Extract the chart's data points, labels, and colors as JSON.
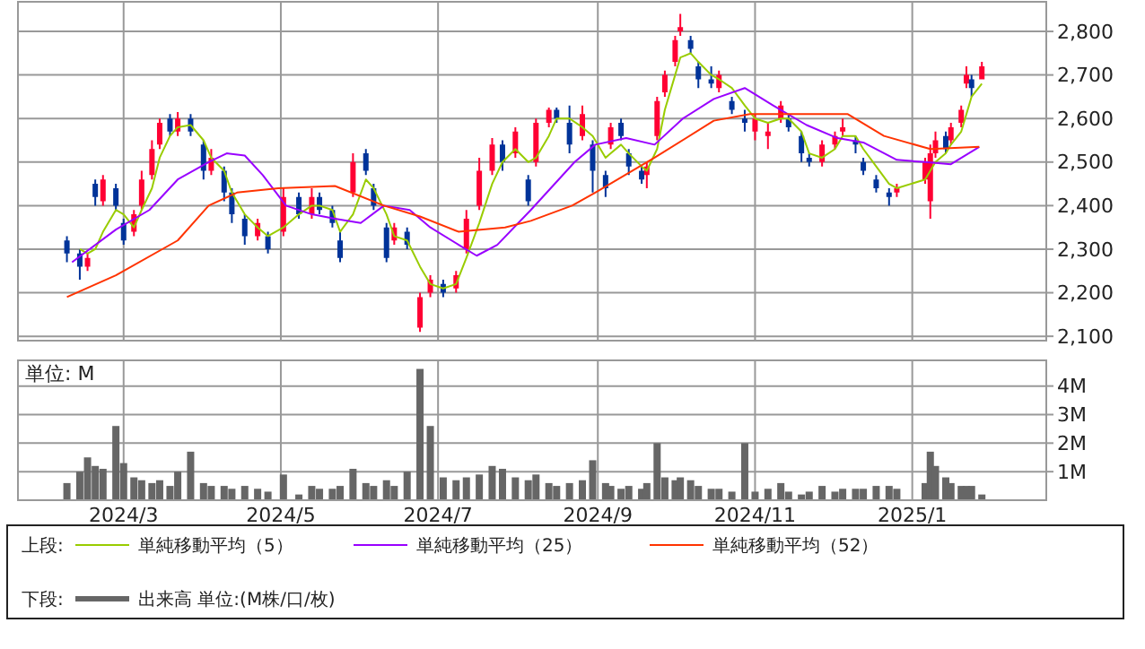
{
  "chart_data": [
    {
      "type": "candlestick",
      "tick_labels": "y",
      "grid": true,
      "legend": "bottom",
      "annotations": [
        "上段:"
      ],
      "xlim": [
        "2024-01-20",
        "2025-02-22"
      ],
      "xticks": [
        {
          "value": "2024-03-01",
          "label": null
        },
        {
          "value": "2024-05-01",
          "label": null
        },
        {
          "value": "2024-07-01",
          "label": null
        },
        {
          "value": "2024-09-01",
          "label": null
        },
        {
          "value": "2024-11-01",
          "label": null
        },
        {
          "value": "2025-01-01",
          "label": null
        }
      ],
      "ylim": [
        2090,
        2868
      ],
      "yticks": [
        {
          "value": 2100,
          "label": "2,100"
        },
        {
          "value": 2200,
          "label": "2,200"
        },
        {
          "value": 2300,
          "label": "2,300"
        },
        {
          "value": 2400,
          "label": "2,400"
        },
        {
          "value": 2500,
          "label": "2,500"
        },
        {
          "value": 2600,
          "label": "2,600"
        },
        {
          "value": 2700,
          "label": "2,700"
        },
        {
          "value": 2800,
          "label": "2,800"
        }
      ],
      "x": [
        "2024-02-08",
        "2024-02-13",
        "2024-02-16",
        "2024-02-19",
        "2024-02-22",
        "2024-02-27",
        "2024-03-01",
        "2024-03-05",
        "2024-03-08",
        "2024-03-12",
        "2024-03-15",
        "2024-03-19",
        "2024-03-22",
        "2024-03-27",
        "2024-04-01",
        "2024-04-04",
        "2024-04-09",
        "2024-04-12",
        "2024-04-17",
        "2024-04-22",
        "2024-04-26",
        "2024-05-02",
        "2024-05-08",
        "2024-05-13",
        "2024-05-16",
        "2024-05-21",
        "2024-05-24",
        "2024-05-29",
        "2024-06-03",
        "2024-06-06",
        "2024-06-11",
        "2024-06-14",
        "2024-06-19",
        "2024-06-24",
        "2024-06-28",
        "2024-07-03",
        "2024-07-08",
        "2024-07-12",
        "2024-07-17",
        "2024-07-22",
        "2024-07-26",
        "2024-07-31",
        "2024-08-05",
        "2024-08-08",
        "2024-08-13",
        "2024-08-16",
        "2024-08-21",
        "2024-08-26",
        "2024-08-30",
        "2024-09-04",
        "2024-09-06",
        "2024-09-10",
        "2024-09-13",
        "2024-09-18",
        "2024-09-20",
        "2024-09-24",
        "2024-09-27",
        "2024-10-01",
        "2024-10-03",
        "2024-10-07",
        "2024-10-10",
        "2024-10-15",
        "2024-10-18",
        "2024-10-23",
        "2024-10-28",
        "2024-11-01",
        "2024-11-06",
        "2024-11-11",
        "2024-11-14",
        "2024-11-19",
        "2024-11-22",
        "2024-11-27",
        "2024-12-02",
        "2024-12-05",
        "2024-12-10",
        "2024-12-13",
        "2024-12-18",
        "2024-12-23",
        "2024-12-26",
        "2025-01-06",
        "2025-01-08",
        "2025-01-10",
        "2025-01-14",
        "2025-01-16",
        "2025-01-20",
        "2025-01-22",
        "2025-01-24",
        "2025-01-28"
      ],
      "ohlc": [
        [
          2320,
          2330,
          2270,
          2290
        ],
        [
          2290,
          2300,
          2230,
          2260
        ],
        [
          2260,
          2290,
          2250,
          2280
        ],
        [
          2450,
          2460,
          2400,
          2420
        ],
        [
          2410,
          2470,
          2400,
          2460
        ],
        [
          2440,
          2450,
          2390,
          2400
        ],
        [
          2360,
          2370,
          2310,
          2320
        ],
        [
          2340,
          2390,
          2330,
          2380
        ],
        [
          2400,
          2480,
          2390,
          2460
        ],
        [
          2470,
          2550,
          2460,
          2530
        ],
        [
          2540,
          2600,
          2530,
          2590
        ],
        [
          2600,
          2610,
          2560,
          2570
        ],
        [
          2570,
          2615,
          2560,
          2600
        ],
        [
          2600,
          2610,
          2560,
          2570
        ],
        [
          2540,
          2550,
          2460,
          2480
        ],
        [
          2480,
          2530,
          2470,
          2510
        ],
        [
          2480,
          2490,
          2410,
          2430
        ],
        [
          2430,
          2440,
          2360,
          2380
        ],
        [
          2370,
          2380,
          2310,
          2330
        ],
        [
          2330,
          2370,
          2320,
          2360
        ],
        [
          2330,
          2340,
          2290,
          2300
        ],
        [
          2340,
          2440,
          2330,
          2420
        ],
        [
          2420,
          2430,
          2370,
          2380
        ],
        [
          2380,
          2440,
          2370,
          2420
        ],
        [
          2420,
          2430,
          2380,
          2390
        ],
        [
          2390,
          2400,
          2350,
          2360
        ],
        [
          2320,
          2340,
          2270,
          2280
        ],
        [
          2430,
          2520,
          2420,
          2500
        ],
        [
          2520,
          2530,
          2470,
          2480
        ],
        [
          2440,
          2450,
          2390,
          2400
        ],
        [
          2350,
          2360,
          2270,
          2280
        ],
        [
          2320,
          2360,
          2310,
          2350
        ],
        [
          2340,
          2350,
          2300,
          2310
        ],
        [
          2120,
          2200,
          2110,
          2190
        ],
        [
          2200,
          2240,
          2190,
          2230
        ],
        [
          2220,
          2230,
          2190,
          2200
        ],
        [
          2210,
          2250,
          2200,
          2240
        ],
        [
          2300,
          2390,
          2290,
          2370
        ],
        [
          2400,
          2510,
          2390,
          2480
        ],
        [
          2480,
          2555,
          2470,
          2540
        ],
        [
          2540,
          2550,
          2480,
          2500
        ],
        [
          2520,
          2580,
          2510,
          2570
        ],
        [
          2460,
          2470,
          2400,
          2410
        ],
        [
          2500,
          2600,
          2490,
          2590
        ],
        [
          2590,
          2625,
          2580,
          2620
        ],
        [
          2620,
          2625,
          2590,
          2600
        ],
        [
          2590,
          2630,
          2520,
          2540
        ],
        [
          2560,
          2630,
          2550,
          2610
        ],
        [
          2540,
          2550,
          2430,
          2480
        ],
        [
          2470,
          2480,
          2420,
          2440
        ],
        [
          2540,
          2590,
          2530,
          2580
        ],
        [
          2590,
          2600,
          2550,
          2560
        ],
        [
          2520,
          2530,
          2470,
          2490
        ],
        [
          2480,
          2490,
          2450,
          2460
        ],
        [
          2470,
          2500,
          2440,
          2490
        ],
        [
          2560,
          2650,
          2550,
          2640
        ],
        [
          2660,
          2710,
          2650,
          2700
        ],
        [
          2730,
          2790,
          2720,
          2780
        ],
        [
          2800,
          2840,
          2790,
          2810
        ],
        [
          2780,
          2790,
          2750,
          2760
        ],
        [
          2720,
          2730,
          2670,
          2690
        ],
        [
          2690,
          2720,
          2670,
          2680
        ],
        [
          2670,
          2710,
          2660,
          2700
        ],
        [
          2640,
          2650,
          2610,
          2620
        ],
        [
          2600,
          2620,
          2570,
          2590
        ],
        [
          2570,
          2610,
          2550,
          2600
        ],
        [
          2560,
          2590,
          2530,
          2570
        ],
        [
          2600,
          2640,
          2590,
          2630
        ],
        [
          2600,
          2610,
          2570,
          2580
        ],
        [
          2560,
          2570,
          2500,
          2520
        ],
        [
          2510,
          2520,
          2490,
          2500
        ],
        [
          2500,
          2550,
          2490,
          2540
        ],
        [
          2540,
          2570,
          2530,
          2560
        ],
        [
          2570,
          2600,
          2560,
          2580
        ],
        [
          2550,
          2560,
          2520,
          2540
        ],
        [
          2500,
          2510,
          2470,
          2480
        ],
        [
          2460,
          2470,
          2430,
          2440
        ],
        [
          2430,
          2440,
          2400,
          2420
        ],
        [
          2430,
          2450,
          2420,
          2440
        ],
        [
          2460,
          2510,
          2450,
          2500
        ],
        [
          2410,
          2540,
          2370,
          2520
        ],
        [
          2520,
          2570,
          2510,
          2550
        ],
        [
          2560,
          2570,
          2520,
          2530
        ],
        [
          2550,
          2590,
          2540,
          2580
        ],
        [
          2590,
          2630,
          2580,
          2620
        ],
        [
          2680,
          2720,
          2670,
          2700
        ],
        [
          2690,
          2700,
          2650,
          2670
        ],
        [
          2690,
          2730,
          2690,
          2720
        ]
      ],
      "colors": [
        "#003399",
        "#003399",
        "#ff0033",
        "#003399",
        "#ff0033",
        "#003399",
        "#003399",
        "#ff0033",
        "#ff0033",
        "#ff0033",
        "#ff0033",
        "#003399",
        "#ff0033",
        "#003399",
        "#003399",
        "#ff0033",
        "#003399",
        "#003399",
        "#003399",
        "#ff0033",
        "#003399",
        "#ff0033",
        "#003399",
        "#ff0033",
        "#003399",
        "#003399",
        "#003399",
        "#ff0033",
        "#003399",
        "#003399",
        "#003399",
        "#ff0033",
        "#003399",
        "#ff0033",
        "#ff0033",
        "#003399",
        "#ff0033",
        "#ff0033",
        "#ff0033",
        "#ff0033",
        "#003399",
        "#ff0033",
        "#003399",
        "#ff0033",
        "#ff0033",
        "#003399",
        "#003399",
        "#ff0033",
        "#003399",
        "#003399",
        "#ff0033",
        "#003399",
        "#003399",
        "#003399",
        "#ff0033",
        "#ff0033",
        "#ff0033",
        "#ff0033",
        "#ff0033",
        "#003399",
        "#003399",
        "#003399",
        "#ff0033",
        "#003399",
        "#003399",
        "#ff0033",
        "#ff0033",
        "#ff0033",
        "#003399",
        "#003399",
        "#003399",
        "#ff0033",
        "#ff0033",
        "#ff0033",
        "#003399",
        "#003399",
        "#003399",
        "#003399",
        "#ff0033",
        "#ff0033",
        "#ff0033",
        "#ff0033",
        "#003399",
        "#ff0033",
        "#ff0033",
        "#ff0033",
        "#003399",
        "#ff0033"
      ],
      "series": [
        {
          "type": "line",
          "name": "単純移動平均（5）",
          "color": "#99cc00",
          "x": [
            "2024-02-13",
            "2024-02-16",
            "2024-02-19",
            "2024-02-22",
            "2024-02-27",
            "2024-03-01",
            "2024-03-05",
            "2024-03-08",
            "2024-03-12",
            "2024-03-15",
            "2024-03-19",
            "2024-03-22",
            "2024-03-27",
            "2024-04-01",
            "2024-04-04",
            "2024-04-09",
            "2024-04-12",
            "2024-04-17",
            "2024-04-22",
            "2024-04-26",
            "2024-05-02",
            "2024-05-08",
            "2024-05-13",
            "2024-05-16",
            "2024-05-21",
            "2024-05-24",
            "2024-05-29",
            "2024-06-03",
            "2024-06-06",
            "2024-06-11",
            "2024-06-14",
            "2024-06-19",
            "2024-06-24",
            "2024-06-28",
            "2024-07-03",
            "2024-07-08",
            "2024-07-12",
            "2024-07-17",
            "2024-07-22",
            "2024-07-26",
            "2024-07-31",
            "2024-08-05",
            "2024-08-08",
            "2024-08-13",
            "2024-08-16",
            "2024-08-21",
            "2024-08-26",
            "2024-08-30",
            "2024-09-04",
            "2024-09-06",
            "2024-09-10",
            "2024-09-13",
            "2024-09-18",
            "2024-09-20",
            "2024-09-24",
            "2024-09-27",
            "2024-10-01",
            "2024-10-03",
            "2024-10-07",
            "2024-10-10",
            "2024-10-15",
            "2024-10-18",
            "2024-10-23",
            "2024-10-28",
            "2024-11-01",
            "2024-11-06",
            "2024-11-11",
            "2024-11-14",
            "2024-11-19",
            "2024-11-22",
            "2024-11-27",
            "2024-12-02",
            "2024-12-05",
            "2024-12-10",
            "2024-12-13",
            "2024-12-18",
            "2024-12-23",
            "2024-12-26",
            "2025-01-06",
            "2025-01-08",
            "2025-01-10",
            "2025-01-14",
            "2025-01-16",
            "2025-01-20",
            "2025-01-22",
            "2025-01-24",
            "2025-01-28"
          ],
          "values": [
            2300,
            2290,
            2300,
            2340,
            2390,
            2380,
            2350,
            2390,
            2440,
            2510,
            2560,
            2580,
            2585,
            2550,
            2510,
            2480,
            2430,
            2380,
            2350,
            2330,
            2350,
            2380,
            2400,
            2400,
            2390,
            2340,
            2380,
            2460,
            2440,
            2380,
            2330,
            2320,
            2260,
            2220,
            2210,
            2220,
            2280,
            2360,
            2450,
            2500,
            2530,
            2500,
            2510,
            2560,
            2600,
            2600,
            2580,
            2560,
            2510,
            2520,
            2540,
            2520,
            2490,
            2480,
            2530,
            2620,
            2700,
            2740,
            2750,
            2730,
            2700,
            2690,
            2670,
            2630,
            2600,
            2590,
            2600,
            2600,
            2570,
            2520,
            2510,
            2530,
            2560,
            2560,
            2530,
            2490,
            2450,
            2440,
            2460,
            2480,
            2500,
            2520,
            2540,
            2570,
            2610,
            2650,
            2680
          ]
        },
        {
          "type": "line",
          "name": "単純移動平均（25）",
          "color": "#9900ff",
          "x": [
            "2024-02-10",
            "2024-02-27",
            "2024-03-11",
            "2024-03-22",
            "2024-04-03",
            "2024-04-10",
            "2024-04-17",
            "2024-04-24",
            "2024-05-03",
            "2024-05-13",
            "2024-05-22",
            "2024-06-01",
            "2024-06-10",
            "2024-06-20",
            "2024-06-28",
            "2024-07-09",
            "2024-07-16",
            "2024-07-24",
            "2024-08-06",
            "2024-08-23",
            "2024-08-31",
            "2024-09-12",
            "2024-09-23",
            "2024-10-04",
            "2024-10-16",
            "2024-10-28",
            "2024-11-08",
            "2024-11-21",
            "2024-12-03",
            "2024-12-13",
            "2024-12-26",
            "2025-01-06",
            "2025-01-16",
            "2025-01-27"
          ],
          "values": [
            2270,
            2345,
            2390,
            2460,
            2500,
            2520,
            2515,
            2470,
            2400,
            2380,
            2370,
            2360,
            2400,
            2390,
            2350,
            2310,
            2285,
            2310,
            2390,
            2500,
            2540,
            2555,
            2540,
            2600,
            2645,
            2670,
            2630,
            2585,
            2555,
            2545,
            2505,
            2500,
            2495,
            2535
          ]
        },
        {
          "type": "line",
          "name": "単純移動平均（52）",
          "color": "#ff3300",
          "x": [
            "2024-02-08",
            "2024-02-27",
            "2024-03-22",
            "2024-04-03",
            "2024-04-14",
            "2024-04-30",
            "2024-05-22",
            "2024-06-10",
            "2024-06-24",
            "2024-07-09",
            "2024-07-27",
            "2024-08-06",
            "2024-08-22",
            "2024-08-31",
            "2024-09-23",
            "2024-10-16",
            "2024-10-30",
            "2024-11-21",
            "2024-12-07",
            "2024-12-21",
            "2025-01-08",
            "2025-01-27"
          ],
          "values": [
            2190,
            2240,
            2320,
            2400,
            2430,
            2440,
            2445,
            2400,
            2375,
            2340,
            2350,
            2365,
            2400,
            2430,
            2510,
            2595,
            2610,
            2610,
            2610,
            2560,
            2530,
            2535
          ]
        }
      ]
    },
    {
      "type": "bar",
      "grid": true,
      "legend": "bottom",
      "annotations": [
        "単位: M",
        "下段:"
      ],
      "xlim": [
        "2024-01-20",
        "2025-02-22"
      ],
      "xticks": [
        {
          "value": "2024-03-01",
          "label": "2024/3"
        },
        {
          "value": "2024-05-01",
          "label": "2024/5"
        },
        {
          "value": "2024-07-01",
          "label": "2024/7"
        },
        {
          "value": "2024-09-01",
          "label": "2024/9"
        },
        {
          "value": "2024-11-01",
          "label": "2024/11"
        },
        {
          "value": "2025-01-01",
          "label": "2025/1"
        }
      ],
      "ylim": [
        0,
        4.9
      ],
      "yticks": [
        {
          "value": 1,
          "label": "1M"
        },
        {
          "value": 2,
          "label": "2M"
        },
        {
          "value": 3,
          "label": "3M"
        },
        {
          "value": 4,
          "label": "4M"
        }
      ],
      "x": [
        "2024-02-08",
        "2024-02-13",
        "2024-02-16",
        "2024-02-19",
        "2024-02-22",
        "2024-02-27",
        "2024-03-01",
        "2024-03-05",
        "2024-03-08",
        "2024-03-12",
        "2024-03-15",
        "2024-03-19",
        "2024-03-22",
        "2024-03-27",
        "2024-04-01",
        "2024-04-04",
        "2024-04-09",
        "2024-04-12",
        "2024-04-17",
        "2024-04-22",
        "2024-04-26",
        "2024-05-02",
        "2024-05-08",
        "2024-05-13",
        "2024-05-16",
        "2024-05-21",
        "2024-05-24",
        "2024-05-29",
        "2024-06-03",
        "2024-06-06",
        "2024-06-11",
        "2024-06-14",
        "2024-06-19",
        "2024-06-24",
        "2024-06-28",
        "2024-07-03",
        "2024-07-08",
        "2024-07-12",
        "2024-07-17",
        "2024-07-22",
        "2024-07-26",
        "2024-07-31",
        "2024-08-05",
        "2024-08-08",
        "2024-08-13",
        "2024-08-16",
        "2024-08-21",
        "2024-08-26",
        "2024-08-30",
        "2024-09-04",
        "2024-09-06",
        "2024-09-10",
        "2024-09-13",
        "2024-09-18",
        "2024-09-20",
        "2024-09-24",
        "2024-09-27",
        "2024-10-01",
        "2024-10-03",
        "2024-10-07",
        "2024-10-10",
        "2024-10-15",
        "2024-10-18",
        "2024-10-23",
        "2024-10-28",
        "2024-11-01",
        "2024-11-06",
        "2024-11-11",
        "2024-11-14",
        "2024-11-19",
        "2024-11-22",
        "2024-11-27",
        "2024-12-02",
        "2024-12-05",
        "2024-12-10",
        "2024-12-13",
        "2024-12-18",
        "2024-12-23",
        "2024-12-26",
        "2025-01-06",
        "2025-01-08",
        "2025-01-10",
        "2025-01-14",
        "2025-01-16",
        "2025-01-20",
        "2025-01-22",
        "2025-01-24",
        "2025-01-28"
      ],
      "series": [
        {
          "name": "出来高 単位:(M株/口/枚)",
          "color": "#666666",
          "values": [
            0.6,
            1.0,
            1.5,
            1.2,
            1.1,
            2.6,
            1.3,
            0.8,
            0.7,
            0.6,
            0.7,
            0.5,
            1.0,
            1.7,
            0.6,
            0.5,
            0.5,
            0.4,
            0.5,
            0.4,
            0.3,
            0.9,
            0.2,
            0.5,
            0.4,
            0.4,
            0.5,
            1.1,
            0.6,
            0.5,
            0.7,
            0.5,
            1.0,
            4.6,
            2.6,
            0.8,
            0.7,
            0.8,
            0.9,
            1.2,
            1.1,
            0.8,
            0.7,
            0.9,
            0.6,
            0.5,
            0.6,
            0.7,
            1.4,
            0.6,
            0.5,
            0.4,
            0.5,
            0.4,
            0.6,
            2.0,
            0.8,
            0.7,
            0.8,
            0.7,
            0.5,
            0.4,
            0.4,
            0.3,
            2.0,
            0.3,
            0.4,
            0.6,
            0.3,
            0.2,
            0.3,
            0.5,
            0.3,
            0.4,
            0.4,
            0.4,
            0.5,
            0.5,
            0.4,
            0.6,
            1.7,
            1.2,
            0.8,
            0.6,
            0.5,
            0.5,
            0.5,
            0.2
          ]
        }
      ]
    }
  ]
}
